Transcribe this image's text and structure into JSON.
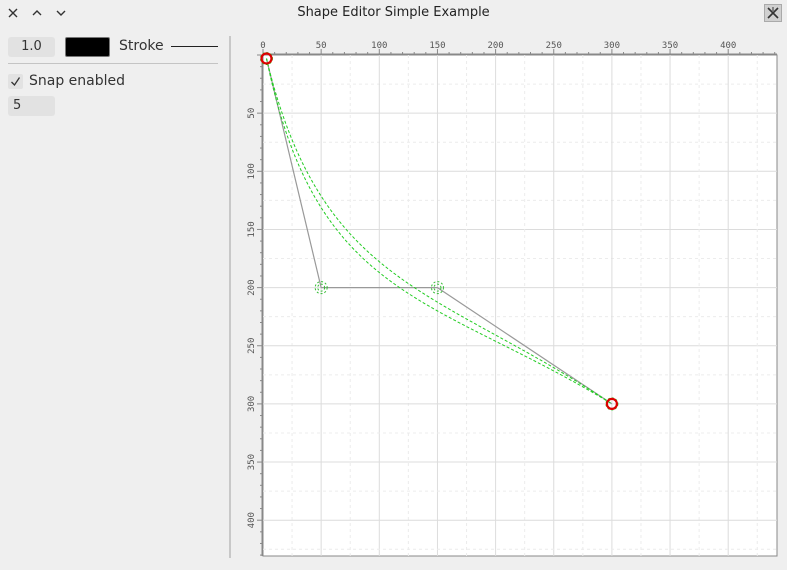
{
  "window": {
    "title": "Shape Editor Simple Example",
    "buttons": [
      "close-icon",
      "maximize-icon",
      "minimize-icon",
      "app-icon"
    ]
  },
  "toolbar": {
    "stroke_width": "1.0",
    "stroke_color": "#000000",
    "stroke_label": "Stroke"
  },
  "snap": {
    "label": "Snap enabled",
    "checked": true,
    "value": "5"
  },
  "editor": {
    "x_ticks": [
      "0",
      "50",
      "100",
      "150",
      "200",
      "250",
      "300",
      "350",
      "400"
    ],
    "y_ticks": [
      "50",
      "100",
      "150",
      "200",
      "250",
      "300",
      "350",
      "400"
    ],
    "control_points": [
      {
        "x": 3,
        "y": 3,
        "kind": "endpoint"
      },
      {
        "x": 50,
        "y": 200,
        "kind": "control"
      },
      {
        "x": 150,
        "y": 200,
        "kind": "control"
      },
      {
        "x": 300,
        "y": 300,
        "kind": "endpoint"
      }
    ],
    "colors": {
      "endpoint": "#dd0000",
      "control": "#33bb33",
      "curve": "#22cc22",
      "polygon": "#999999"
    }
  }
}
